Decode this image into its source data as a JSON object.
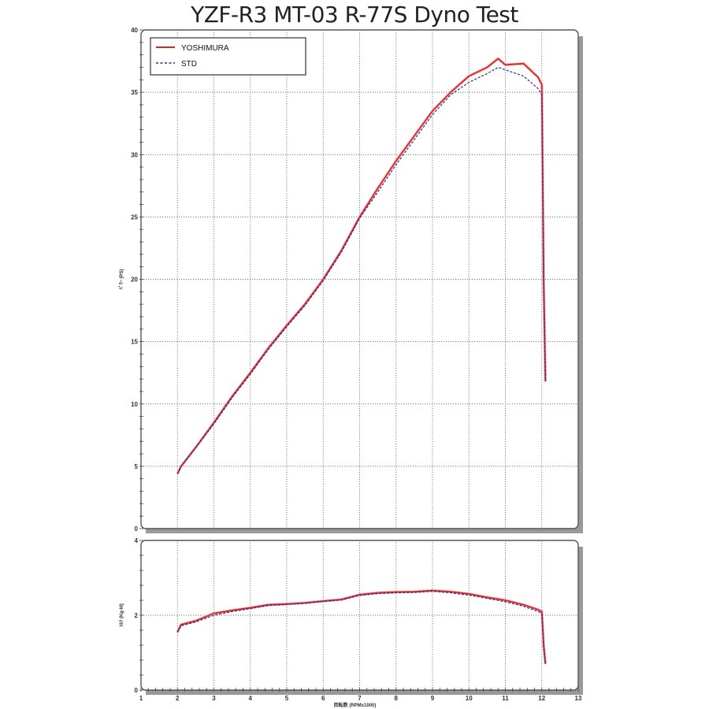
{
  "title": "YZF-R3 MT-03 R-77S Dyno Test",
  "legend": {
    "items": [
      {
        "label": "YOSHIMURA",
        "color": "#d62a2a",
        "style": "solid"
      },
      {
        "label": "STD",
        "color": "#2a2a9a",
        "style": "dashed"
      }
    ]
  },
  "axes": {
    "x_label": "回転数 (RPMx1000)",
    "x_ticks": [
      "1",
      "2",
      "3",
      "4",
      "5",
      "6",
      "7",
      "8",
      "9",
      "10",
      "11",
      "12",
      "13"
    ],
    "power_label": "ﾊﾟﾜｰ (PS)",
    "power_ticks": [
      "0",
      "5",
      "10",
      "15",
      "20",
      "25",
      "30",
      "35",
      "40"
    ],
    "torque_label": "ﾄﾙｸ (Kg-M)",
    "torque_ticks": [
      "0",
      "2",
      "4"
    ]
  },
  "chart_data": [
    {
      "type": "line",
      "title": "YZF-R3 MT-03 R-77S Dyno Test",
      "subtitle": "Power",
      "xlabel": "回転数 (RPMx1000)",
      "ylabel": "ﾊﾟﾜｰ (PS)",
      "xlim": [
        1,
        13
      ],
      "ylim": [
        0,
        40
      ],
      "grid": true,
      "legend_position": "top-left",
      "x": [
        2.0,
        2.1,
        2.5,
        3.0,
        3.5,
        4.0,
        4.5,
        5.0,
        5.5,
        6.0,
        6.5,
        7.0,
        7.5,
        8.0,
        8.5,
        9.0,
        9.5,
        10.0,
        10.5,
        10.8,
        11.0,
        11.5,
        11.9,
        12.0,
        12.05,
        12.1
      ],
      "series": [
        {
          "name": "YOSHIMURA",
          "values": [
            4.4,
            5.0,
            6.5,
            8.5,
            10.6,
            12.5,
            14.5,
            16.3,
            18.0,
            20.0,
            22.3,
            25.0,
            27.3,
            29.5,
            31.5,
            33.5,
            35.0,
            36.3,
            37.0,
            37.7,
            37.2,
            37.3,
            36.2,
            35.6,
            20.0,
            11.8
          ]
        },
        {
          "name": "STD",
          "values": [
            4.4,
            5.0,
            6.5,
            8.4,
            10.5,
            12.4,
            14.4,
            16.2,
            17.9,
            19.9,
            22.2,
            24.9,
            27.0,
            29.2,
            31.2,
            33.2,
            34.8,
            35.8,
            36.5,
            37.0,
            36.8,
            36.3,
            35.3,
            34.8,
            20.0,
            11.8
          ]
        }
      ]
    },
    {
      "type": "line",
      "subtitle": "Torque",
      "xlabel": "回転数 (RPMx1000)",
      "ylabel": "ﾄﾙｸ (Kg-M)",
      "xlim": [
        1,
        13
      ],
      "ylim": [
        0,
        4
      ],
      "grid": true,
      "x": [
        2.0,
        2.1,
        2.5,
        3.0,
        3.5,
        4.0,
        4.5,
        5.0,
        5.5,
        6.0,
        6.5,
        7.0,
        7.5,
        8.0,
        8.5,
        9.0,
        9.5,
        10.0,
        10.5,
        11.0,
        11.5,
        11.9,
        12.0,
        12.05,
        12.1
      ],
      "series": [
        {
          "name": "YOSHIMURA",
          "values": [
            1.55,
            1.75,
            1.85,
            2.05,
            2.13,
            2.2,
            2.28,
            2.3,
            2.33,
            2.38,
            2.42,
            2.55,
            2.6,
            2.62,
            2.63,
            2.66,
            2.63,
            2.57,
            2.48,
            2.4,
            2.28,
            2.15,
            2.1,
            1.2,
            0.7
          ]
        },
        {
          "name": "STD",
          "values": [
            1.55,
            1.72,
            1.82,
            2.0,
            2.1,
            2.18,
            2.26,
            2.29,
            2.32,
            2.37,
            2.41,
            2.53,
            2.58,
            2.6,
            2.61,
            2.64,
            2.6,
            2.54,
            2.45,
            2.36,
            2.24,
            2.1,
            2.05,
            1.2,
            0.7
          ]
        }
      ]
    }
  ]
}
